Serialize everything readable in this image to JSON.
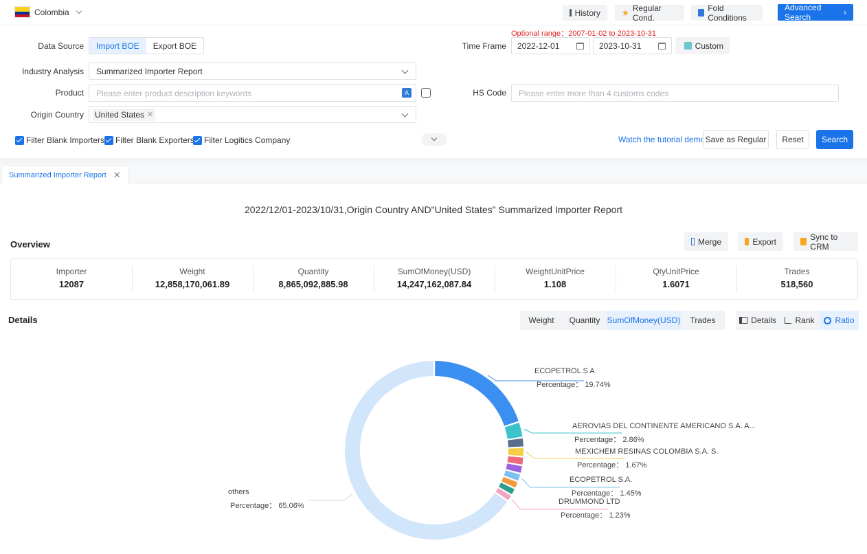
{
  "topbar": {
    "country": "Colombia",
    "buttons": {
      "history": "History",
      "regular": "Regular Cond.",
      "fold": "Fold Conditions",
      "advanced": "Advanced Search"
    },
    "colors": {
      "primary": "#1a73e8"
    }
  },
  "filters": {
    "optional_range": "Optional range：2007-01-02 to 2023-10-31",
    "data_source_label": "Data Source",
    "data_source_options": [
      "Import BOE",
      "Export BOE"
    ],
    "data_source_selected": "Import BOE",
    "time_frame_label": "Time Frame",
    "date_from": "2022-12-01",
    "date_to": "2023-10-31",
    "custom_label": "Custom",
    "industry_label": "Industry Analysis",
    "industry_value": "Summarized Importer Report",
    "product_label": "Product",
    "product_placeholder": "Please enter product description keywords",
    "hs_label": "HS Code",
    "hs_placeholder": "Please enter more than 4 customs codes",
    "origin_label": "Origin Country",
    "origin_tag": "United States",
    "checkboxes": [
      "Filter Blank Importers",
      "Filter Blank Exporters",
      "Filter Logitics Company"
    ],
    "tutorial_link": "Watch the tutorial demo",
    "save_regular": "Save as Regular",
    "reset": "Reset",
    "search": "Search"
  },
  "report": {
    "tab_label": "Summarized Importer Report",
    "title": "2022/12/01-2023/10/31,Origin Country AND\"United States\" Summarized Importer Report",
    "overview_title": "Overview",
    "actions": {
      "merge": "Merge",
      "export": "Export",
      "sync": "Sync to CRM"
    },
    "overview": [
      {
        "label": "Importer",
        "value": "12087"
      },
      {
        "label": "Weight",
        "value": "12,858,170,061.89"
      },
      {
        "label": "Quantity",
        "value": "8,865,092,885.98"
      },
      {
        "label": "SumOfMoney(USD)",
        "value": "14,247,162,087.84"
      },
      {
        "label": "WeightUnitPrice",
        "value": "1.108"
      },
      {
        "label": "QtyUnitPrice",
        "value": "1.6071"
      },
      {
        "label": "Trades",
        "value": "518,560"
      }
    ],
    "details_title": "Details",
    "metric_tabs": [
      "Weight",
      "Quantity",
      "SumOfMoney(USD)",
      "Trades"
    ],
    "metric_selected": "SumOfMoney(USD)",
    "view_tabs": [
      "Details",
      "Rank",
      "Ratio"
    ],
    "view_selected": "Ratio"
  },
  "chart_data": {
    "type": "pie",
    "variant": "donut",
    "percentage_prefix": "Percentage：",
    "slices": [
      {
        "name": "ECOPETROL S A",
        "value": 19.74,
        "color": "#3b8ff0",
        "labeled": true
      },
      {
        "name": "AEROVIAS DEL CONTINENTE AMERICANO S.A. A...",
        "value": 2.86,
        "color": "#3cc3c9",
        "labeled": true
      },
      {
        "name": "",
        "value": 1.75,
        "color": "#5b6d8c",
        "labeled": false
      },
      {
        "name": "MEXICHEM RESINAS COLOMBIA S.A. S.",
        "value": 1.67,
        "color": "#f6cd45",
        "labeled": true
      },
      {
        "name": "",
        "value": 1.55,
        "color": "#ee6b7e",
        "labeled": false
      },
      {
        "name": "",
        "value": 1.5,
        "color": "#9a63e0",
        "labeled": false
      },
      {
        "name": "ECOPETROL S.A.",
        "value": 1.45,
        "color": "#7ec0ef",
        "labeled": true
      },
      {
        "name": "",
        "value": 1.35,
        "color": "#f39a3c",
        "labeled": false
      },
      {
        "name": "",
        "value": 1.3,
        "color": "#2f9e8f",
        "labeled": false
      },
      {
        "name": "DRUMMOND LTD",
        "value": 1.23,
        "color": "#f4a3c3",
        "labeled": true
      },
      {
        "name": "others",
        "value": 65.06,
        "color": "#d2e6fb",
        "labeled": true
      }
    ]
  }
}
